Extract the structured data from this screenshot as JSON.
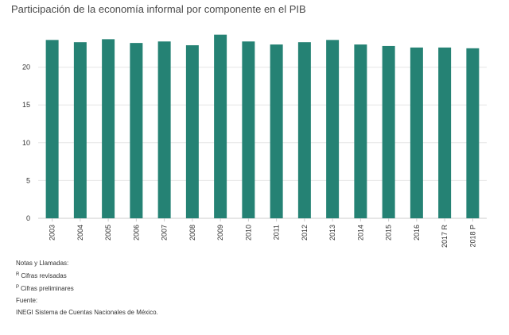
{
  "colors": {
    "bar": "#258274",
    "grid": "#e6e6e6",
    "axis": "#cccccc"
  },
  "chart_data": {
    "type": "bar",
    "title": "Participación de la economía informal por componente en el PIB",
    "xlabel": "",
    "ylabel": "",
    "categories": [
      "2003",
      "2004",
      "2005",
      "2006",
      "2007",
      "2008",
      "2009",
      "2010",
      "2011",
      "2012",
      "2013",
      "2014",
      "2015",
      "2016",
      "2017 R",
      "2018 P"
    ],
    "values": [
      23.6,
      23.3,
      23.7,
      23.2,
      23.4,
      22.9,
      24.3,
      23.4,
      23.0,
      23.3,
      23.6,
      23.0,
      22.8,
      22.6,
      22.6,
      22.5
    ],
    "ylim": [
      0,
      25
    ],
    "yticks": [
      0,
      5,
      10,
      15,
      20
    ],
    "grid": true,
    "legend": "none"
  },
  "notes": {
    "heading": "Notas y Llamadas:",
    "items": [
      {
        "mark": "R",
        "text": "Cifras revisadas"
      },
      {
        "mark": "P",
        "text": "Cifras preliminares"
      }
    ],
    "source_label": "Fuente:",
    "source_text": "INEGI Sistema de Cuentas Nacionales de México."
  }
}
